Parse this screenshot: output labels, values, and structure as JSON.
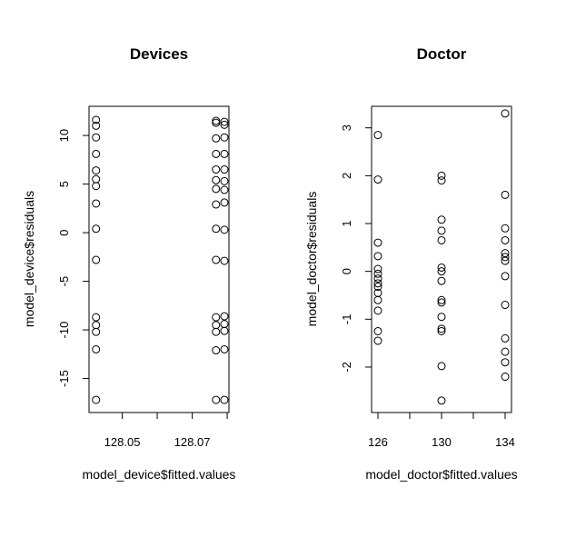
{
  "chart_data": [
    {
      "type": "scatter",
      "title": "Devices",
      "xlabel": "model_device$fitted.values",
      "ylabel": "model_device$residuals",
      "xlim": [
        128.0405,
        128.0805
      ],
      "ylim": [
        -18.5,
        13.0
      ],
      "xticks": [
        128.05,
        128.06,
        128.07,
        128.08
      ],
      "xtick_labels": [
        "128.05",
        "",
        "128.07",
        ""
      ],
      "yticks": [
        -15,
        -10,
        -5,
        0,
        5,
        10
      ],
      "ytick_labels": [
        "-15",
        "-10",
        "-5",
        "0",
        "5",
        "10"
      ],
      "grid": false,
      "points": [
        {
          "x": 128.0425,
          "y": 11.6
        },
        {
          "x": 128.0425,
          "y": 11.0
        },
        {
          "x": 128.0425,
          "y": 9.8
        },
        {
          "x": 128.0425,
          "y": 8.1
        },
        {
          "x": 128.0425,
          "y": 6.4
        },
        {
          "x": 128.0425,
          "y": 5.5
        },
        {
          "x": 128.0425,
          "y": 4.8
        },
        {
          "x": 128.0425,
          "y": 3.0
        },
        {
          "x": 128.0425,
          "y": 0.4
        },
        {
          "x": 128.0425,
          "y": -2.8
        },
        {
          "x": 128.0425,
          "y": -8.7
        },
        {
          "x": 128.0425,
          "y": -9.5
        },
        {
          "x": 128.0425,
          "y": -10.2
        },
        {
          "x": 128.0425,
          "y": -12.0
        },
        {
          "x": 128.0425,
          "y": -17.2
        },
        {
          "x": 128.0768,
          "y": 11.5
        },
        {
          "x": 128.0768,
          "y": 11.3
        },
        {
          "x": 128.0768,
          "y": 9.7
        },
        {
          "x": 128.0768,
          "y": 8.1
        },
        {
          "x": 128.0768,
          "y": 6.5
        },
        {
          "x": 128.0768,
          "y": 5.4
        },
        {
          "x": 128.0768,
          "y": 4.5
        },
        {
          "x": 128.0768,
          "y": 2.9
        },
        {
          "x": 128.0768,
          "y": 0.4
        },
        {
          "x": 128.0768,
          "y": -2.8
        },
        {
          "x": 128.0768,
          "y": -8.7
        },
        {
          "x": 128.0768,
          "y": -9.5
        },
        {
          "x": 128.0768,
          "y": -10.2
        },
        {
          "x": 128.0768,
          "y": -12.1
        },
        {
          "x": 128.0768,
          "y": -17.2
        },
        {
          "x": 128.0792,
          "y": 11.4
        },
        {
          "x": 128.0792,
          "y": 11.1
        },
        {
          "x": 128.0792,
          "y": 9.8
        },
        {
          "x": 128.0792,
          "y": 8.1
        },
        {
          "x": 128.0792,
          "y": 6.5
        },
        {
          "x": 128.0792,
          "y": 5.3
        },
        {
          "x": 128.0792,
          "y": 4.4
        },
        {
          "x": 128.0792,
          "y": 3.1
        },
        {
          "x": 128.0792,
          "y": 0.3
        },
        {
          "x": 128.0792,
          "y": -2.9
        },
        {
          "x": 128.0792,
          "y": -8.6
        },
        {
          "x": 128.0792,
          "y": -9.4
        },
        {
          "x": 128.0792,
          "y": -10.1
        },
        {
          "x": 128.0792,
          "y": -12.0
        },
        {
          "x": 128.0792,
          "y": -17.2
        }
      ]
    },
    {
      "type": "scatter",
      "title": "Doctor",
      "xlabel": "model_doctor$fitted.values",
      "ylabel": "model_doctor$residuals",
      "xlim": [
        125.6,
        134.4
      ],
      "ylim": [
        -2.95,
        3.45
      ],
      "xticks": [
        126,
        128,
        130,
        132,
        134
      ],
      "xtick_labels": [
        "126",
        "",
        "130",
        "",
        "134"
      ],
      "yticks": [
        -2,
        -1,
        0,
        1,
        2,
        3
      ],
      "ytick_labels": [
        "-2",
        "-1",
        "0",
        "1",
        "2",
        "3"
      ],
      "grid": false,
      "points": [
        {
          "x": 126,
          "y": 2.85
        },
        {
          "x": 126,
          "y": 1.92
        },
        {
          "x": 126,
          "y": 0.6
        },
        {
          "x": 126,
          "y": 0.32
        },
        {
          "x": 126,
          "y": 0.05
        },
        {
          "x": 126,
          "y": -0.05
        },
        {
          "x": 126,
          "y": -0.15
        },
        {
          "x": 126,
          "y": -0.25
        },
        {
          "x": 126,
          "y": -0.32
        },
        {
          "x": 126,
          "y": -0.45
        },
        {
          "x": 126,
          "y": -0.6
        },
        {
          "x": 126,
          "y": -0.82
        },
        {
          "x": 126,
          "y": -1.25
        },
        {
          "x": 126,
          "y": -1.45
        },
        {
          "x": 130,
          "y": 2.0
        },
        {
          "x": 130,
          "y": 1.9
        },
        {
          "x": 130,
          "y": 1.08
        },
        {
          "x": 130,
          "y": 0.85
        },
        {
          "x": 130,
          "y": 0.65
        },
        {
          "x": 130,
          "y": 0.08
        },
        {
          "x": 130,
          "y": 0.0
        },
        {
          "x": 130,
          "y": -0.2
        },
        {
          "x": 130,
          "y": -0.6
        },
        {
          "x": 130,
          "y": -0.65
        },
        {
          "x": 130,
          "y": -0.95
        },
        {
          "x": 130,
          "y": -1.2
        },
        {
          "x": 130,
          "y": -1.25
        },
        {
          "x": 130,
          "y": -1.98
        },
        {
          "x": 130,
          "y": -2.7
        },
        {
          "x": 134,
          "y": 3.3
        },
        {
          "x": 134,
          "y": 1.6
        },
        {
          "x": 134,
          "y": 0.9
        },
        {
          "x": 134,
          "y": 0.65
        },
        {
          "x": 134,
          "y": 0.38
        },
        {
          "x": 134,
          "y": 0.3
        },
        {
          "x": 134,
          "y": 0.22
        },
        {
          "x": 134,
          "y": -0.1
        },
        {
          "x": 134,
          "y": -0.7
        },
        {
          "x": 134,
          "y": -1.4
        },
        {
          "x": 134,
          "y": -1.68
        },
        {
          "x": 134,
          "y": -1.9
        },
        {
          "x": 134,
          "y": -2.2
        }
      ]
    }
  ]
}
